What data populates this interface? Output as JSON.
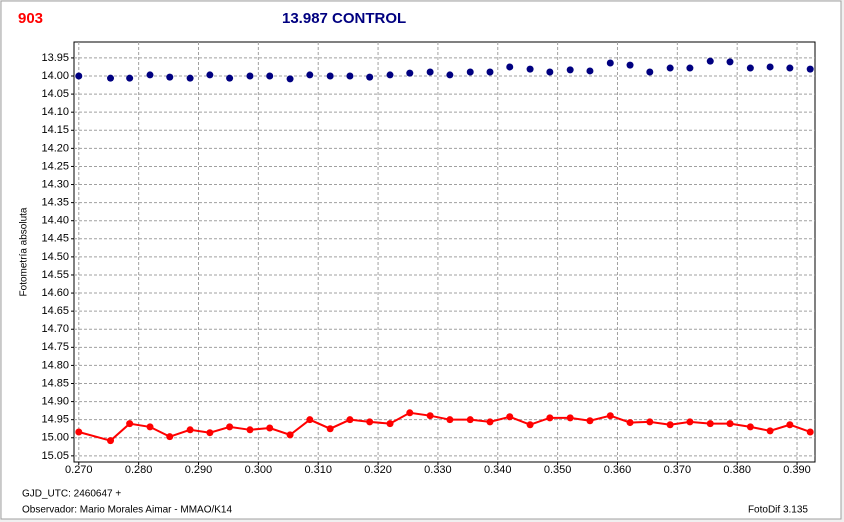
{
  "chart_data": {
    "type": "scatter",
    "title": "13.987 CONTROL",
    "star_label": "903",
    "y_label": "Fotometría absoluta",
    "x_label": "GJD_UTC: 2460647 +",
    "observer": "Observador: Mario Morales Aimar - MMAO/K14",
    "software": "FotoDif 3.135",
    "grid": true,
    "xlim": [
      0.2692,
      0.393
    ],
    "ylim": [
      15.067,
      13.906
    ],
    "xticks": [
      {
        "value": 0.27,
        "label": "0.270"
      },
      {
        "value": 0.28,
        "label": "0.280"
      },
      {
        "value": 0.29,
        "label": "0.290"
      },
      {
        "value": 0.3,
        "label": "0.300"
      },
      {
        "value": 0.31,
        "label": "0.310"
      },
      {
        "value": 0.32,
        "label": "0.320"
      },
      {
        "value": 0.33,
        "label": "0.330"
      },
      {
        "value": 0.34,
        "label": "0.340"
      },
      {
        "value": 0.35,
        "label": "0.350"
      },
      {
        "value": 0.36,
        "label": "0.360"
      },
      {
        "value": 0.37,
        "label": "0.370"
      },
      {
        "value": 0.38,
        "label": "0.380"
      },
      {
        "value": 0.39,
        "label": "0.390"
      }
    ],
    "yticks": [
      13.95,
      {
        "value": 14.0,
        "label": "14.00"
      },
      14.05,
      {
        "value": 14.1,
        "label": "14.10"
      },
      14.15,
      {
        "value": 14.2,
        "label": "14.20"
      },
      14.25,
      {
        "value": 14.3,
        "label": "14.30"
      },
      14.35,
      {
        "value": 14.4,
        "label": "14.40"
      },
      14.45,
      {
        "value": 14.5,
        "label": "14.50"
      },
      14.55,
      {
        "value": 14.6,
        "label": "14.60"
      },
      14.65,
      {
        "value": 14.7,
        "label": "14.70"
      },
      14.75,
      {
        "value": 14.8,
        "label": "14.80"
      },
      14.85,
      {
        "value": 14.9,
        "label": "14.90"
      },
      14.95,
      {
        "value": 15.0,
        "label": "15.00"
      },
      15.05
    ],
    "x": [
      0.27,
      0.2753,
      0.2785,
      0.2819,
      0.2852,
      0.2886,
      0.2919,
      0.2952,
      0.2986,
      0.3019,
      0.3053,
      0.3086,
      0.312,
      0.3153,
      0.3186,
      0.322,
      0.3253,
      0.3287,
      0.332,
      0.3354,
      0.3387,
      0.342,
      0.3454,
      0.3487,
      0.3521,
      0.3554,
      0.3588,
      0.3621,
      0.3654,
      0.3688,
      0.3721,
      0.3755,
      0.3788,
      0.3822,
      0.3855,
      0.3888,
      0.3922
    ],
    "series": [
      {
        "color": "#000080",
        "line": false,
        "values": [
          14.0,
          14.006,
          14.006,
          13.997,
          14.003,
          14.006,
          13.997,
          14.006,
          14.0,
          14.0,
          14.008,
          13.997,
          14.0,
          14.0,
          14.003,
          13.997,
          13.992,
          13.989,
          13.997,
          13.989,
          13.989,
          13.975,
          13.981,
          13.989,
          13.983,
          13.986,
          13.964,
          13.97,
          13.989,
          13.978,
          13.978,
          13.959,
          13.961,
          13.978,
          13.975,
          13.978,
          13.981
        ]
      },
      {
        "color": "#ff0000",
        "line": true,
        "values": [
          14.984,
          15.008,
          14.961,
          14.97,
          14.997,
          14.978,
          14.986,
          14.97,
          14.978,
          14.973,
          14.992,
          14.95,
          14.975,
          14.95,
          14.956,
          14.961,
          14.931,
          14.939,
          14.95,
          14.95,
          14.956,
          14.942,
          14.964,
          14.945,
          14.945,
          14.953,
          14.939,
          14.958,
          14.956,
          14.964,
          14.956,
          14.961,
          14.961,
          14.97,
          14.981,
          14.964,
          14.984
        ]
      }
    ]
  }
}
